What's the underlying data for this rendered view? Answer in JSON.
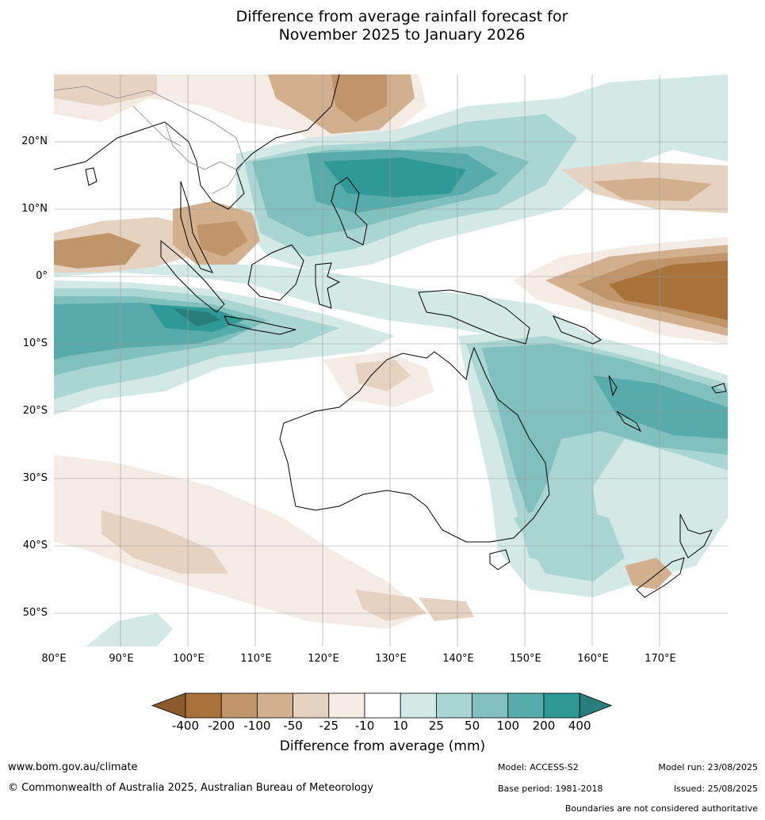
{
  "title_line1": "Difference from average rainfall forecast for",
  "title_line2": "November 2025 to January 2026",
  "lat_labels": [
    "20°N",
    "10°N",
    "0°",
    "10°S",
    "20°S",
    "30°S",
    "40°S",
    "50°S"
  ],
  "lon_labels": [
    "80°E",
    "90°E",
    "100°E",
    "110°E",
    "120°E",
    "130°E",
    "140°E",
    "150°E",
    "160°E",
    "170°E"
  ],
  "legend": {
    "title": "Difference from average (mm)",
    "ticks": [
      "-400",
      "-200",
      "-100",
      "-50",
      "-25",
      "-10",
      "10",
      "25",
      "50",
      "100",
      "200",
      "400"
    ],
    "colors": [
      "#8b5a2b",
      "#a8733a",
      "#c1956a",
      "#d2b08e",
      "#e6d2c0",
      "#f4ebe5",
      "#ffffff",
      "#d3e9e6",
      "#a9d5d2",
      "#80c1bf",
      "#57abaa",
      "#2e9996",
      "#287e7a"
    ]
  },
  "footer": {
    "website": "www.bom.gov.au/climate",
    "copyright": "© Commonwealth of Australia 2025, Australian Bureau of Meteorology",
    "model": "Model: ACCESS-S2",
    "base_period": "Base period: 1981-2018",
    "model_run": "Model run: 23/08/2025",
    "issued": "Issued: 25/08/2025",
    "disclaimer": "Boundaries are not considered authoritative"
  }
}
